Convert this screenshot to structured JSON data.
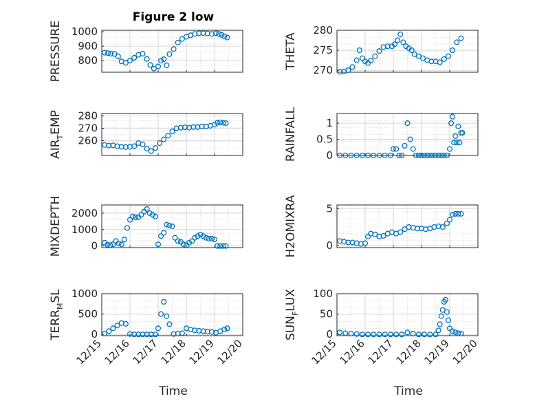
{
  "figure": {
    "title": "Figure 2 low",
    "xlabel": "Time",
    "marker_color": "#0072BD",
    "axis_color": "#262626",
    "grid_color": "#d9d9d9"
  },
  "chart_data": [
    {
      "id": "pressure",
      "type": "scatter",
      "title": "Figure 2 low",
      "ylabel": "PRESSURE",
      "ylabel_parts": [
        {
          "t": "PRESSURE"
        }
      ],
      "xlim": [
        0,
        5
      ],
      "ylim": [
        720,
        1010
      ],
      "yticks": [
        800,
        900,
        1000
      ],
      "x": [
        0.1,
        0.22,
        0.32,
        0.45,
        0.58,
        0.7,
        0.85,
        1.0,
        1.15,
        1.3,
        1.45,
        1.6,
        1.72,
        1.85,
        2.0,
        2.1,
        2.2,
        2.3,
        2.4,
        2.55,
        2.7,
        2.85,
        3.0,
        3.15,
        3.3,
        3.45,
        3.6,
        3.75,
        3.9,
        4.05,
        4.15,
        4.25,
        4.35,
        4.45
      ],
      "y": [
        855,
        852,
        848,
        846,
        830,
        795,
        785,
        800,
        820,
        840,
        848,
        812,
        770,
        745,
        760,
        800,
        810,
        768,
        845,
        880,
        925,
        950,
        965,
        975,
        985,
        990,
        990,
        988,
        985,
        990,
        985,
        978,
        968,
        960
      ]
    },
    {
      "id": "theta",
      "type": "scatter",
      "ylabel": "THETA",
      "ylabel_parts": [
        {
          "t": "THETA"
        }
      ],
      "xlim": [
        0,
        5
      ],
      "ylim": [
        269.5,
        280
      ],
      "yticks": [
        270,
        275,
        280
      ],
      "x": [
        0.1,
        0.25,
        0.4,
        0.55,
        0.7,
        0.8,
        0.9,
        1.0,
        1.1,
        1.2,
        1.35,
        1.5,
        1.65,
        1.8,
        1.95,
        2.05,
        2.15,
        2.25,
        2.35,
        2.45,
        2.55,
        2.65,
        2.75,
        2.9,
        3.05,
        3.2,
        3.35,
        3.5,
        3.65,
        3.8,
        3.95,
        4.1,
        4.25,
        4.4
      ],
      "y": [
        269.6,
        269.7,
        270.0,
        270.8,
        272.5,
        275.0,
        273.0,
        272.2,
        271.8,
        272.4,
        273.5,
        274.8,
        275.8,
        276.0,
        276.0,
        276.5,
        277.5,
        279.0,
        277.0,
        276.0,
        275.5,
        275.0,
        274.0,
        273.5,
        273.0,
        272.5,
        272.2,
        272.2,
        272.0,
        272.8,
        273.5,
        275.0,
        277.0,
        278.0
      ]
    },
    {
      "id": "air_temp",
      "type": "scatter",
      "ylabel": "AIR_TEMP",
      "ylabel_parts": [
        {
          "t": "AIR"
        },
        {
          "t": "T",
          "sub": true
        },
        {
          "t": "EMP"
        }
      ],
      "xlim": [
        0,
        5
      ],
      "ylim": [
        248,
        282
      ],
      "yticks": [
        260,
        270,
        280
      ],
      "x": [
        0.1,
        0.25,
        0.4,
        0.55,
        0.7,
        0.85,
        1.0,
        1.15,
        1.3,
        1.45,
        1.6,
        1.75,
        1.9,
        2.05,
        2.2,
        2.35,
        2.5,
        2.65,
        2.8,
        2.95,
        3.1,
        3.25,
        3.4,
        3.55,
        3.7,
        3.85,
        4.0,
        4.1,
        4.2,
        4.3,
        4.4
      ],
      "y": [
        256.5,
        256.0,
        256.2,
        255.5,
        255.0,
        254.8,
        255.0,
        255.5,
        258.0,
        257.0,
        253.5,
        251.5,
        254.0,
        258.0,
        261.0,
        264.0,
        267.5,
        270.0,
        270.5,
        270.8,
        270.5,
        271.0,
        271.0,
        271.5,
        271.5,
        272.0,
        273.0,
        274.5,
        274.8,
        274.5,
        274.2
      ]
    },
    {
      "id": "rainfall",
      "type": "scatter",
      "ylabel": "RAINFALL",
      "ylabel_parts": [
        {
          "t": "RAINFALL"
        }
      ],
      "xlim": [
        0,
        5
      ],
      "ylim": [
        0,
        1.3
      ],
      "yticks": [
        0,
        0.5,
        1
      ],
      "x": [
        0.1,
        0.3,
        0.5,
        0.7,
        0.9,
        1.1,
        1.3,
        1.5,
        1.7,
        1.9,
        2.0,
        2.1,
        2.2,
        2.3,
        2.4,
        2.5,
        2.6,
        2.7,
        2.8,
        2.9,
        3.0,
        3.1,
        3.2,
        3.3,
        3.4,
        3.5,
        3.6,
        3.7,
        3.8,
        3.9,
        4.0,
        4.05,
        4.1,
        4.15,
        4.2,
        4.25,
        4.3,
        4.35,
        4.4,
        4.45
      ],
      "y": [
        0,
        0,
        0,
        0,
        0,
        0,
        0,
        0,
        0,
        0,
        0.2,
        0.2,
        0,
        0,
        0.3,
        1.0,
        0.5,
        0.2,
        0,
        0,
        0,
        0,
        0,
        0,
        0,
        0,
        0,
        0,
        0,
        0,
        0.2,
        1.0,
        1.2,
        0.4,
        0.6,
        0.4,
        0.9,
        0.4,
        0.7,
        0.7
      ]
    },
    {
      "id": "mixdepth",
      "type": "scatter",
      "ylabel": "MIXDEPTH",
      "ylabel_parts": [
        {
          "t": "MIXDEPTH"
        }
      ],
      "xlim": [
        0,
        5
      ],
      "ylim": [
        -100,
        2500
      ],
      "yticks": [
        0,
        1000,
        2000
      ],
      "x": [
        0.1,
        0.2,
        0.3,
        0.4,
        0.5,
        0.6,
        0.7,
        0.8,
        0.9,
        1.0,
        1.1,
        1.2,
        1.3,
        1.4,
        1.5,
        1.6,
        1.7,
        1.8,
        1.9,
        2.0,
        2.1,
        2.2,
        2.3,
        2.4,
        2.5,
        2.6,
        2.7,
        2.8,
        2.9,
        3.0,
        3.1,
        3.2,
        3.3,
        3.4,
        3.5,
        3.6,
        3.7,
        3.8,
        3.9,
        4.0,
        4.1,
        4.2,
        4.3,
        4.4
      ],
      "y": [
        200,
        80,
        50,
        100,
        300,
        150,
        100,
        400,
        1100,
        1600,
        1800,
        1750,
        1750,
        1900,
        2100,
        2250,
        2000,
        1900,
        1800,
        100,
        600,
        800,
        1300,
        1250,
        1200,
        500,
        300,
        250,
        100,
        50,
        200,
        300,
        500,
        600,
        700,
        600,
        500,
        450,
        450,
        400,
        0,
        0,
        0,
        0
      ]
    },
    {
      "id": "h2omixra",
      "type": "scatter",
      "ylabel": "H2OMIXRA",
      "ylabel_parts": [
        {
          "t": "H2OMIXRA"
        }
      ],
      "xlim": [
        0,
        5
      ],
      "ylim": [
        -0.3,
        5.5
      ],
      "yticks": [
        0,
        5
      ],
      "x": [
        0.1,
        0.25,
        0.4,
        0.55,
        0.7,
        0.85,
        1.0,
        1.1,
        1.2,
        1.35,
        1.5,
        1.65,
        1.8,
        1.95,
        2.1,
        2.25,
        2.4,
        2.55,
        2.7,
        2.85,
        3.0,
        3.15,
        3.3,
        3.45,
        3.6,
        3.75,
        3.9,
        4.0,
        4.1,
        4.2,
        4.3,
        4.4
      ],
      "y": [
        0.6,
        0.5,
        0.4,
        0.4,
        0.3,
        0.2,
        0.3,
        1.2,
        1.6,
        1.5,
        1.2,
        1.3,
        1.6,
        1.8,
        1.6,
        1.8,
        2.2,
        2.5,
        2.4,
        2.3,
        2.3,
        2.2,
        2.3,
        2.5,
        2.6,
        2.5,
        3.0,
        3.5,
        4.2,
        4.3,
        4.3,
        4.3
      ]
    },
    {
      "id": "terr_msl",
      "type": "scatter",
      "ylabel": "TERR_MSL",
      "ylabel_parts": [
        {
          "t": "TERR"
        },
        {
          "t": "M",
          "sub": true
        },
        {
          "t": "SL"
        }
      ],
      "xlim": [
        0,
        5
      ],
      "ylim": [
        -30,
        1000
      ],
      "yticks": [
        0,
        500,
        1000
      ],
      "x": [
        0.1,
        0.25,
        0.4,
        0.55,
        0.7,
        0.85,
        1.0,
        1.15,
        1.3,
        1.45,
        1.6,
        1.75,
        1.9,
        2.0,
        2.1,
        2.2,
        2.3,
        2.4,
        2.55,
        2.7,
        2.85,
        3.0,
        3.15,
        3.3,
        3.45,
        3.6,
        3.75,
        3.9,
        4.05,
        4.2,
        4.35,
        4.45
      ],
      "y": [
        20,
        80,
        150,
        220,
        280,
        260,
        10,
        0,
        0,
        0,
        0,
        0,
        0,
        150,
        500,
        800,
        450,
        250,
        10,
        20,
        30,
        150,
        120,
        100,
        90,
        80,
        70,
        60,
        40,
        80,
        120,
        150
      ]
    },
    {
      "id": "sun_flux",
      "type": "scatter",
      "ylabel": "SUN_FLUX",
      "ylabel_parts": [
        {
          "t": "SUN"
        },
        {
          "t": "F",
          "sub": true
        },
        {
          "t": "LUX"
        }
      ],
      "xlim": [
        0,
        5
      ],
      "ylim": [
        -3,
        100
      ],
      "yticks": [
        0,
        50,
        100
      ],
      "x": [
        0.1,
        0.3,
        0.5,
        0.7,
        0.9,
        1.1,
        1.3,
        1.5,
        1.7,
        1.9,
        2.1,
        2.3,
        2.5,
        2.7,
        2.9,
        3.1,
        3.3,
        3.5,
        3.6,
        3.65,
        3.7,
        3.75,
        3.8,
        3.85,
        3.9,
        3.95,
        4.0,
        4.1,
        4.2,
        4.3,
        4.4
      ],
      "y": [
        5,
        3,
        2,
        1,
        0,
        0,
        0,
        0,
        0,
        0,
        0,
        0,
        5,
        2,
        0,
        0,
        0,
        0,
        10,
        25,
        45,
        60,
        80,
        85,
        55,
        35,
        15,
        8,
        5,
        3,
        2
      ]
    }
  ],
  "xticks": [
    {
      "v": 0,
      "label": "12/15"
    },
    {
      "v": 1,
      "label": "12/16"
    },
    {
      "v": 2,
      "label": "12/17"
    },
    {
      "v": 3,
      "label": "12/18"
    },
    {
      "v": 4,
      "label": "12/19"
    },
    {
      "v": 5,
      "label": "12/20"
    }
  ]
}
